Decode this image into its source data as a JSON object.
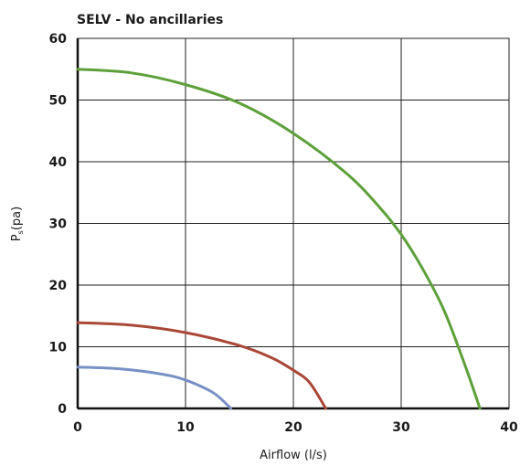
{
  "chart_data": {
    "type": "line",
    "title": "SELV - No ancillaries",
    "xlabel": "Airflow (l/s)",
    "ylabel": {
      "main": "P",
      "subscript": "s",
      "unit": "(pa)"
    },
    "xlim": [
      0,
      40
    ],
    "ylim": [
      0,
      60
    ],
    "xticks": [
      "0",
      "10",
      "20",
      "30",
      "40"
    ],
    "yticks": [
      "0",
      "10",
      "20",
      "30",
      "40",
      "50",
      "60"
    ],
    "grid": true,
    "legend": "none",
    "series": [
      {
        "color": "#5da03a",
        "x": [
          0,
          5,
          10,
          15,
          20,
          25,
          28,
          30,
          32,
          34,
          36,
          37.3
        ],
        "y": [
          55,
          54.4,
          52.5,
          49.5,
          44.6,
          38,
          32.6,
          28.2,
          22.6,
          15.8,
          6.6,
          0
        ]
      },
      {
        "color": "#a94837",
        "x": [
          0,
          5,
          10,
          15,
          18,
          20,
          21.5,
          23
        ],
        "y": [
          13.9,
          13.5,
          12.3,
          10.2,
          8.2,
          6.2,
          4.2,
          0
        ]
      },
      {
        "color": "#7790c5",
        "x": [
          0,
          4,
          8,
          10,
          12,
          13,
          14.2
        ],
        "y": [
          6.7,
          6.4,
          5.5,
          4.6,
          3.1,
          2.0,
          0
        ]
      }
    ]
  }
}
